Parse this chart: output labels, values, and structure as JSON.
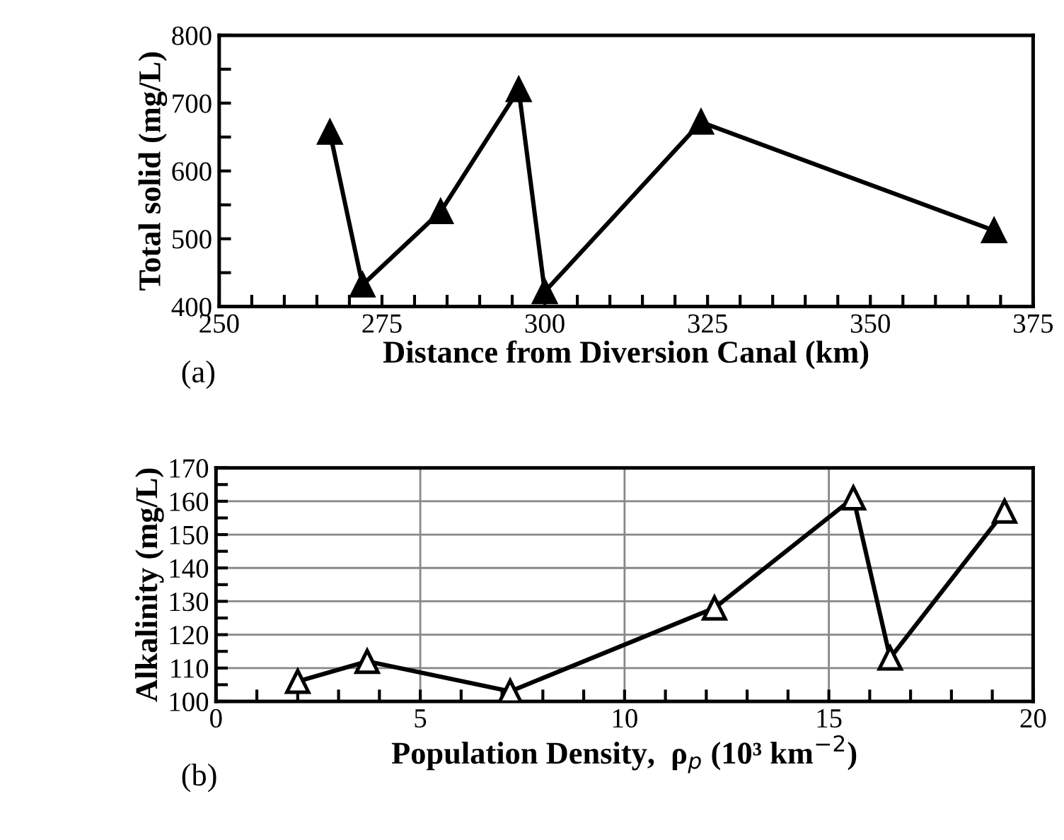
{
  "chart_data": [
    {
      "type": "line",
      "xlabel": "Distance from Diversion Canal (km)",
      "ylabel": "Total solid (mg/L)",
      "annotations": [
        "(a)"
      ],
      "series": [
        {
          "color": "#000000",
          "x": [
            267,
            272,
            284,
            296,
            300,
            324,
            369
          ],
          "values": [
            657,
            432,
            540,
            720,
            422,
            672,
            512
          ]
        }
      ],
      "xlim": [
        250,
        375
      ],
      "xticks": [
        250,
        {
          "value": 255,
          "label": null
        },
        {
          "value": 260,
          "label": null
        },
        {
          "value": 265,
          "label": null
        },
        {
          "value": 270,
          "label": null
        },
        275,
        {
          "value": 280,
          "label": null
        },
        {
          "value": 285,
          "label": null
        },
        {
          "value": 290,
          "label": null
        },
        {
          "value": 295,
          "label": null
        },
        300,
        {
          "value": 305,
          "label": null
        },
        {
          "value": 310,
          "label": null
        },
        {
          "value": 315,
          "label": null
        },
        {
          "value": 320,
          "label": null
        },
        325,
        {
          "value": 330,
          "label": null
        },
        {
          "value": 335,
          "label": null
        },
        {
          "value": 340,
          "label": null
        },
        {
          "value": 345,
          "label": null
        },
        350,
        {
          "value": 355,
          "label": null
        },
        {
          "value": 360,
          "label": null
        },
        {
          "value": 365,
          "label": null
        },
        {
          "value": 370,
          "label": null
        },
        375
      ],
      "ylim": [
        400,
        800
      ],
      "yticks": [
        400,
        {
          "value": 450,
          "label": null
        },
        500,
        {
          "value": 550,
          "label": null
        },
        600,
        {
          "value": 650,
          "label": null
        },
        700,
        {
          "value": 750,
          "label": null
        },
        800
      ],
      "grid": false,
      "marker": "triangle",
      "line_style": "solid",
      "legend": false
    },
    {
      "type": "line",
      "xlabel": "Population Density,  ρ$_{p}$ (10³ km$^{−2}$)",
      "ylabel": "Alkalinity (mg/L)",
      "annotations": [
        "(b)"
      ],
      "series": [
        {
          "color": "#000000",
          "x": [
            2.0,
            3.7,
            7.2,
            12.2,
            15.6,
            16.5,
            19.3
          ],
          "values": [
            106,
            112,
            103,
            128,
            161,
            113,
            157
          ]
        }
      ],
      "xlim": [
        0,
        20
      ],
      "xticks": [
        0,
        {
          "value": 1,
          "label": null
        },
        {
          "value": 2,
          "label": null
        },
        {
          "value": 3,
          "label": null
        },
        {
          "value": 4,
          "label": null
        },
        5,
        {
          "value": 6,
          "label": null
        },
        {
          "value": 7,
          "label": null
        },
        {
          "value": 8,
          "label": null
        },
        {
          "value": 9,
          "label": null
        },
        10,
        {
          "value": 11,
          "label": null
        },
        {
          "value": 12,
          "label": null
        },
        {
          "value": 13,
          "label": null
        },
        {
          "value": 14,
          "label": null
        },
        15,
        {
          "value": 16,
          "label": null
        },
        {
          "value": 17,
          "label": null
        },
        {
          "value": 18,
          "label": null
        },
        {
          "value": 19,
          "label": null
        },
        20
      ],
      "ylim": [
        100,
        170
      ],
      "yticks": [
        100,
        {
          "value": 105,
          "label": null
        },
        110,
        {
          "value": 115,
          "label": null
        },
        120,
        {
          "value": 125,
          "label": null
        },
        130,
        {
          "value": 135,
          "label": null
        },
        140,
        {
          "value": 145,
          "label": null
        },
        150,
        {
          "value": 155,
          "label": null
        },
        160,
        {
          "value": 165,
          "label": null
        },
        170
      ],
      "grid": true,
      "marker": "triangle",
      "line_style": "solid",
      "legend": false
    }
  ]
}
